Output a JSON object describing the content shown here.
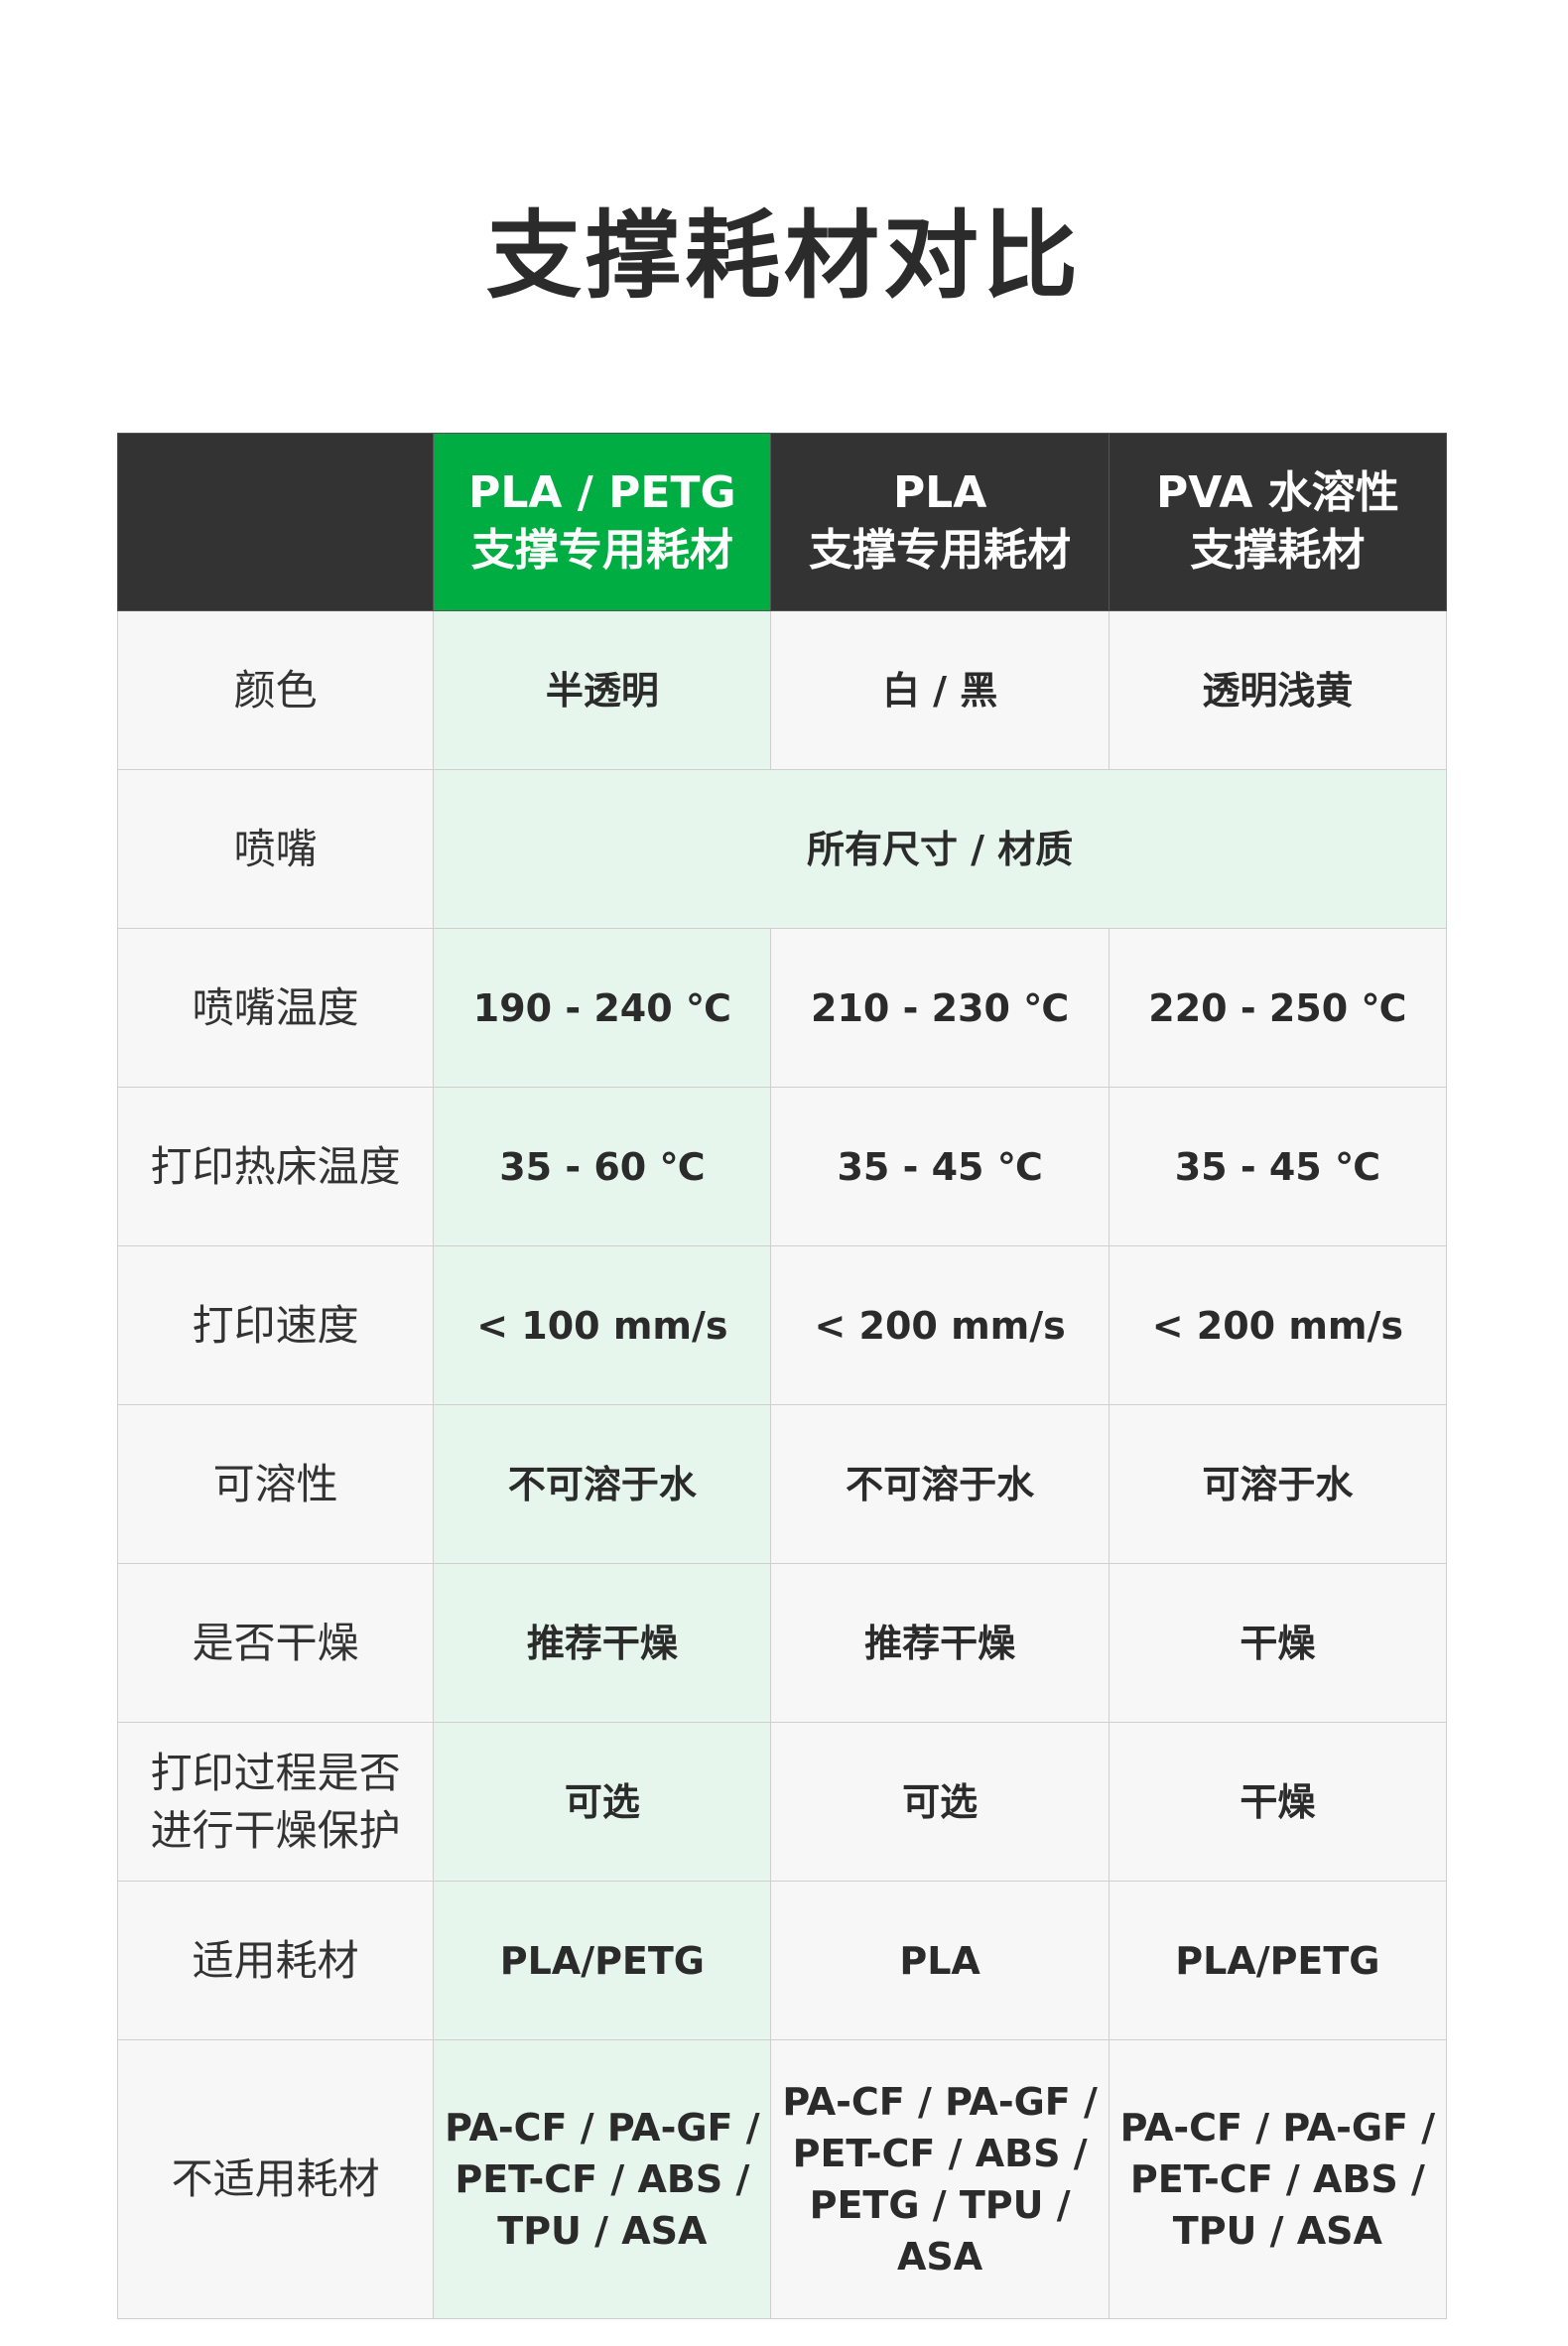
{
  "title": "支撑耗材对比",
  "colors": {
    "accent": "#00ad42",
    "accent_light": "#e6f6ec",
    "header_dark": "#333333",
    "cell_bg": "#f7f7f7"
  },
  "table": {
    "headers": [
      {
        "line1": "",
        "line2": ""
      },
      {
        "line1": "PLA / PETG",
        "line2": "支撑专用耗材"
      },
      {
        "line1": "PLA",
        "line2": "支撑专用耗材"
      },
      {
        "line1": "PVA 水溶性",
        "line2": "支撑耗材"
      }
    ],
    "rows": [
      {
        "label": "颜色",
        "cells": [
          "半透明",
          "白 / 黑",
          "透明浅黄"
        ]
      },
      {
        "label": "喷嘴",
        "merged": "所有尺寸 / 材质"
      },
      {
        "label": "喷嘴温度",
        "cells": [
          "190 - 240 ℃",
          "210 - 230 ℃",
          "220 - 250 ℃"
        ]
      },
      {
        "label": "打印热床温度",
        "cells": [
          "35 - 60 ℃",
          "35 - 45 ℃",
          "35 - 45 ℃"
        ]
      },
      {
        "label": "打印速度",
        "cells": [
          "< 100 mm/s",
          "< 200 mm/s",
          "< 200 mm/s"
        ]
      },
      {
        "label": "可溶性",
        "cells": [
          "不可溶于水",
          "不可溶于水",
          "可溶于水"
        ]
      },
      {
        "label": "是否干燥",
        "cells": [
          "推荐干燥",
          "推荐干燥",
          "干燥"
        ]
      },
      {
        "label": "打印过程是否进行干燥保护",
        "cells": [
          "可选",
          "可选",
          "干燥"
        ]
      },
      {
        "label": "适用耗材",
        "cells": [
          "PLA/PETG",
          "PLA",
          "PLA/PETG"
        ]
      },
      {
        "label": "不适用耗材",
        "cells": [
          "PA-CF / PA-GF / PET-CF / ABS / TPU / ASA",
          "PA-CF / PA-GF / PET-CF / ABS / PETG / TPU / ASA",
          "PA-CF / PA-GF / PET-CF / ABS / TPU / ASA"
        ]
      }
    ]
  }
}
